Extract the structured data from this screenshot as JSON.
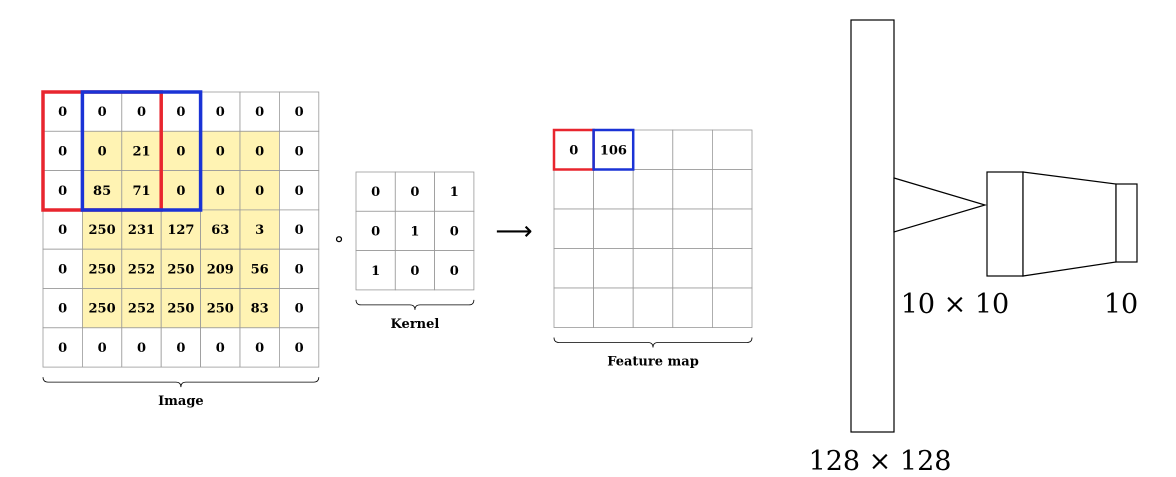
{
  "image_grid": {
    "caption": "Image",
    "cells": [
      [
        "0",
        "0",
        "0",
        "0",
        "0",
        "0",
        "0"
      ],
      [
        "0",
        "0",
        "21",
        "0",
        "0",
        "0",
        "0"
      ],
      [
        "0",
        "85",
        "71",
        "0",
        "0",
        "0",
        "0"
      ],
      [
        "0",
        "250",
        "231",
        "127",
        "63",
        "3",
        "0"
      ],
      [
        "0",
        "250",
        "252",
        "250",
        "209",
        "56",
        "0"
      ],
      [
        "0",
        "250",
        "252",
        "250",
        "250",
        "83",
        "0"
      ],
      [
        "0",
        "0",
        "0",
        "0",
        "0",
        "0",
        "0"
      ]
    ],
    "highlight_color": "#fff3b3",
    "window_colors": [
      "#e8252e",
      "#1a33d6"
    ]
  },
  "operator": "∘",
  "kernel": {
    "caption": "Kernel",
    "cells": [
      [
        "0",
        "0",
        "1"
      ],
      [
        "0",
        "1",
        "0"
      ],
      [
        "1",
        "0",
        "0"
      ]
    ]
  },
  "arrow": "⟶",
  "feature_map": {
    "caption": "Feature map",
    "cells": [
      [
        "0",
        "106",
        "",
        "",
        ""
      ],
      [
        "",
        "",
        "",
        "",
        ""
      ],
      [
        "",
        "",
        "",
        "",
        ""
      ],
      [
        "",
        "",
        "",
        "",
        ""
      ],
      [
        "",
        "",
        "",
        "",
        ""
      ]
    ]
  },
  "network": {
    "input_label": "128 × 128",
    "hidden_label": "10 × 10",
    "output_label": "10"
  }
}
